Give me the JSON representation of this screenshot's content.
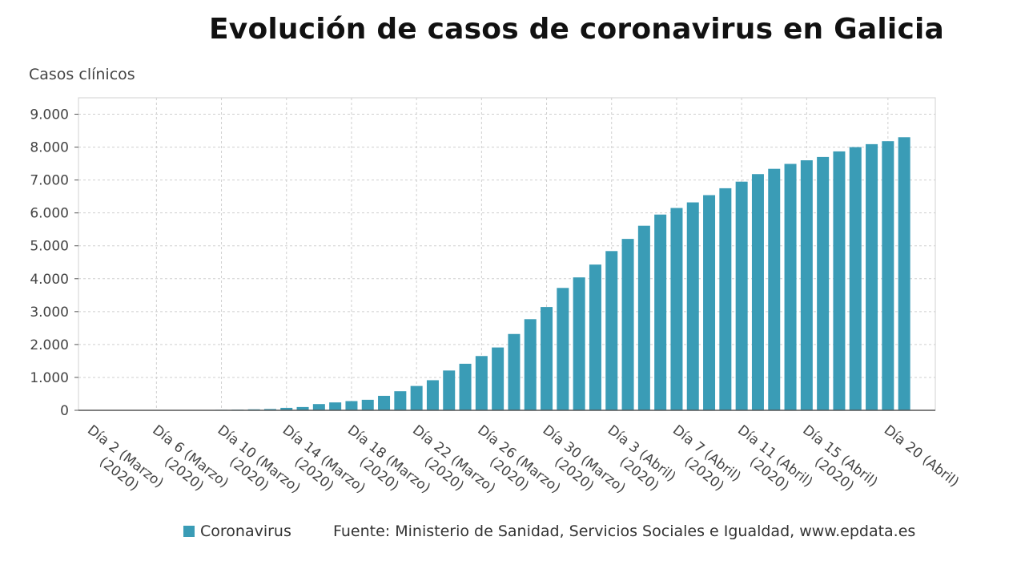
{
  "chart_data": {
    "type": "bar",
    "title": "Evolución de casos de coronavirus en Galicia",
    "ylabel": "Casos clínicos",
    "ylim": [
      0,
      9500
    ],
    "yticks": [
      0,
      1000,
      2000,
      3000,
      4000,
      5000,
      6000,
      7000,
      8000,
      9000
    ],
    "ytick_labels": [
      "0",
      "1.000",
      "2.000",
      "3.000",
      "4.000",
      "5.000",
      "6.000",
      "7.000",
      "8.000",
      "9.000"
    ],
    "grid": true,
    "xtick_labels": [
      [
        "Día 2 (Marzo)",
        "(2020)"
      ],
      [
        "Día 6 (Marzo)",
        "(2020)"
      ],
      [
        "Día 10 (Marzo)",
        "(2020)"
      ],
      [
        "Día 14 (Marzo)",
        "(2020)"
      ],
      [
        "Día 18 (Marzo)",
        "(2020)"
      ],
      [
        "Día 22 (Marzo)",
        "(2020)"
      ],
      [
        "Día 26 (Marzo)",
        "(2020)"
      ],
      [
        "Día 30 (Marzo)",
        "(2020)"
      ],
      [
        "Día 3 (Abril)",
        "(2020)"
      ],
      [
        "Día 7 (Abril)",
        "(2020)"
      ],
      [
        "Día 11 (Abril)",
        "(2020)"
      ],
      [
        "Día 15 (Abril)",
        "(2020)"
      ],
      [
        "Día 20 (Abril)"
      ]
    ],
    "xtick_bar_index": [
      0,
      4,
      8,
      12,
      16,
      20,
      24,
      28,
      32,
      36,
      40,
      44,
      49
    ],
    "series": [
      {
        "name": "Coronavirus",
        "color": "#3a9cb6",
        "values": [
          1,
          2,
          3,
          4,
          5,
          6,
          8,
          10,
          15,
          20,
          30,
          40,
          75,
          100,
          190,
          240,
          280,
          320,
          440,
          580,
          740,
          915,
          1210,
          1415,
          1650,
          1910,
          2320,
          2770,
          3140,
          3720,
          4040,
          4430,
          4840,
          5210,
          5610,
          5950,
          6150,
          6320,
          6540,
          6750,
          6950,
          7180,
          7340,
          7490,
          7600,
          7700,
          7870,
          8000,
          8090,
          8180,
          8300
        ]
      }
    ]
  },
  "legend": {
    "label": "Coronavirus"
  },
  "source": "Fuente: Ministerio de Sanidad, Servicios Sociales e Igualdad, www.epdata.es"
}
